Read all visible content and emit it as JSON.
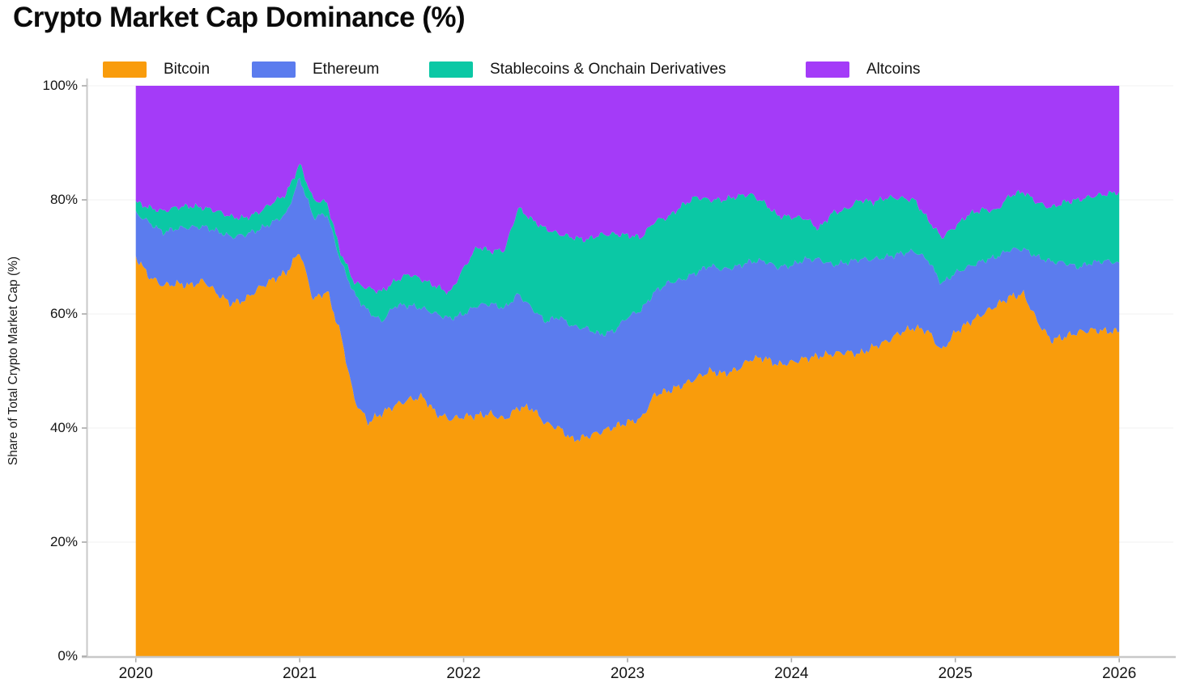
{
  "title": "Crypto Market Cap Dominance (%)",
  "y_axis": {
    "title": "Share of Total Crypto Market Cap (%)",
    "ticks": [
      {
        "label": "0%",
        "value": 0
      },
      {
        "label": "20%",
        "value": 20
      },
      {
        "label": "40%",
        "value": 40
      },
      {
        "label": "60%",
        "value": 60
      },
      {
        "label": "80%",
        "value": 80
      },
      {
        "label": "100%",
        "value": 100
      }
    ]
  },
  "x_axis": {
    "ticks": [
      {
        "label": "2020",
        "value": 2020
      },
      {
        "label": "2021",
        "value": 2021
      },
      {
        "label": "2022",
        "value": 2022
      },
      {
        "label": "2023",
        "value": 2023
      },
      {
        "label": "2024",
        "value": 2024
      },
      {
        "label": "2025",
        "value": 2025
      },
      {
        "label": "2026",
        "value": 2026
      }
    ]
  },
  "legend": [
    {
      "label": "Bitcoin",
      "color": "#F99C0C"
    },
    {
      "label": "Ethereum",
      "color": "#5B7CEE"
    },
    {
      "label": "Stablecoins & Onchain Derivatives",
      "color": "#0BC8A5"
    },
    {
      "label": "Altcoins",
      "color": "#A43BF8"
    }
  ],
  "chart_data": {
    "type": "area",
    "stacked": true,
    "title": "Crypto Market Cap Dominance (%)",
    "xlabel": "",
    "ylabel": "Share of Total Crypto Market Cap (%)",
    "ylim": [
      0,
      100
    ],
    "xlim": [
      2019.7,
      2026.33
    ],
    "grid": "faint-horizontal",
    "legend_position": "top",
    "x_start_year": 2020.0,
    "x_end_year": 2026.0,
    "points_per_year": 12,
    "x_unit": "monthly share of total crypto market cap, percent",
    "series": [
      {
        "name": "Bitcoin",
        "color": "#F99C0C",
        "values": [
          70.0,
          66.5,
          65.0,
          65.3,
          65.0,
          65.8,
          63.5,
          61.8,
          62.5,
          64.5,
          66.0,
          67.2,
          71.0,
          62.5,
          64.0,
          56.4,
          45.0,
          41.0,
          42.6,
          44.0,
          45.0,
          45.5,
          42.5,
          41.6,
          42.0,
          42.2,
          42.5,
          41.5,
          43.6,
          43.5,
          40.8,
          40.0,
          37.9,
          38.5,
          39.3,
          40.2,
          41.0,
          41.6,
          45.9,
          46.5,
          47.5,
          48.7,
          50.0,
          49.5,
          50.2,
          52.1,
          52.3,
          51.1,
          51.5,
          52.2,
          52.6,
          53.0,
          53.3,
          53.0,
          54.2,
          55.2,
          56.8,
          57.6,
          57.0,
          53.5,
          56.8,
          58.5,
          60.0,
          61.5,
          63.0,
          63.5,
          58.7,
          55.4,
          56.0,
          56.8,
          57.2,
          57.0,
          56.9
        ]
      },
      {
        "name": "Ethereum",
        "color": "#5B7CEE",
        "values": [
          7.7,
          9.5,
          9.3,
          9.7,
          10.2,
          9.5,
          11.0,
          11.7,
          11.4,
          10.3,
          10.0,
          10.3,
          12.8,
          14.5,
          13.5,
          12.8,
          18.5,
          19.5,
          16.1,
          17.5,
          16.5,
          15.5,
          17.5,
          17.6,
          18.0,
          19.3,
          19.3,
          19.5,
          19.9,
          17.5,
          17.9,
          19.5,
          19.9,
          19.0,
          17.1,
          16.8,
          18.5,
          19.1,
          18.0,
          19.0,
          18.5,
          18.5,
          18.5,
          18.3,
          18.1,
          17.1,
          17.0,
          17.1,
          17.0,
          17.4,
          17.0,
          15.6,
          15.7,
          16.6,
          15.4,
          14.8,
          13.8,
          13.4,
          12.5,
          11.8,
          10.4,
          9.8,
          9.3,
          8.5,
          8.3,
          7.9,
          11.3,
          13.8,
          13.0,
          11.4,
          11.8,
          12.3,
          12.1
        ]
      },
      {
        "name": "Stablecoins & Onchain Derivatives",
        "color": "#0BC8A5",
        "values": [
          1.9,
          2.6,
          3.7,
          3.7,
          3.7,
          3.3,
          3.5,
          3.5,
          2.9,
          3.0,
          3.5,
          3.5,
          2.5,
          3.0,
          2.0,
          1.6,
          2.0,
          4.0,
          5.2,
          4.3,
          5.5,
          5.0,
          4.8,
          4.5,
          8.0,
          10.3,
          9.2,
          10.2,
          15.1,
          15.5,
          16.2,
          14.5,
          15.6,
          15.5,
          17.5,
          17.0,
          14.3,
          12.7,
          12.4,
          11.5,
          13.0,
          13.3,
          11.5,
          12.2,
          12.3,
          11.8,
          10.2,
          9.0,
          8.5,
          7.2,
          5.3,
          9.1,
          9.3,
          10.4,
          10.0,
          10.4,
          9.7,
          9.0,
          7.0,
          8.1,
          8.1,
          9.2,
          9.0,
          8.1,
          9.5,
          10.0,
          9.5,
          9.4,
          10.6,
          11.8,
          11.6,
          11.7,
          12.4
        ]
      },
      {
        "name": "Altcoins",
        "color": "#A43BF8",
        "values": [
          20.4,
          21.4,
          22.0,
          21.3,
          21.1,
          21.4,
          22.0,
          23.0,
          23.2,
          22.2,
          20.5,
          19.0,
          13.7,
          20.0,
          20.5,
          29.2,
          34.5,
          35.5,
          36.1,
          34.2,
          33.0,
          34.0,
          35.2,
          36.3,
          32.0,
          28.2,
          29.0,
          28.8,
          21.4,
          23.5,
          25.1,
          26.0,
          26.6,
          27.0,
          26.1,
          26.0,
          26.2,
          26.6,
          23.7,
          23.0,
          21.0,
          19.5,
          20.0,
          20.0,
          19.4,
          19.0,
          20.5,
          22.8,
          23.0,
          23.2,
          25.1,
          22.3,
          21.7,
          20.0,
          20.4,
          19.6,
          19.7,
          20.0,
          23.5,
          26.6,
          24.7,
          22.5,
          21.7,
          21.9,
          19.2,
          18.6,
          20.5,
          21.4,
          20.4,
          20.0,
          19.4,
          19.0,
          18.7
        ]
      }
    ],
    "style": {
      "noise_amplitude": [
        0.9,
        0.7,
        0.7
      ],
      "axis_color": "#c8c8c8",
      "grid_color": "rgba(0,0,0,0.04)"
    }
  }
}
